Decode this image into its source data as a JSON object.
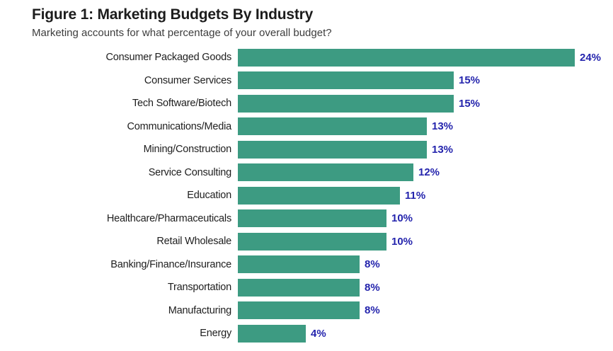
{
  "title": "Figure 1: Marketing Budgets By Industry",
  "subtitle": "Marketing accounts for what percentage of your overall budget?",
  "chart_data": {
    "type": "bar",
    "orientation": "horizontal",
    "title": "Figure 1: Marketing Budgets By Industry",
    "subtitle": "Marketing accounts for what percentage of your overall budget?",
    "categories": [
      "Consumer Packaged Goods",
      "Consumer Services",
      "Tech Software/Biotech",
      "Communications/Media",
      "Mining/Construction",
      "Service Consulting",
      "Education",
      "Healthcare/Pharmaceuticals",
      "Retail Wholesale",
      "Banking/Finance/Insurance",
      "Transportation",
      "Manufacturing",
      "Energy"
    ],
    "values": [
      24,
      15,
      15,
      13,
      13,
      12,
      11,
      10,
      10,
      8,
      8,
      8,
      4
    ],
    "value_labels": [
      "24%",
      "15%",
      "15%",
      "13%",
      "13%",
      "12%",
      "11%",
      "10%",
      "10%",
      "8%",
      "8%",
      "8%",
      "4%"
    ],
    "xlabel": "",
    "ylabel": "",
    "xlim": [
      0,
      25
    ],
    "grid": false,
    "legend": "none",
    "bar_color": "#3d9b82",
    "value_label_color": "#2424ad"
  },
  "colors": {
    "bar": "#3d9b82",
    "value_label": "#2424ad",
    "title": "#1c1c1c",
    "subtitle": "#3d3d3d",
    "category_label": "#1e1e1e",
    "background": "#ffffff"
  }
}
